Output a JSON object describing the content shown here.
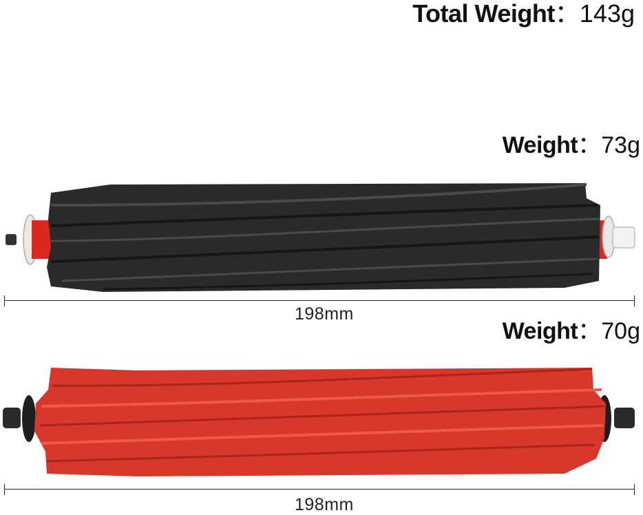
{
  "total": {
    "label": "Total Weight",
    "separator": "：",
    "value": "143g"
  },
  "black_roller": {
    "weight_label": "Weight",
    "separator": "：",
    "weight_value": "73g",
    "length": "198mm",
    "color": "#2b2b2b"
  },
  "red_roller": {
    "weight_label": "Weight",
    "separator": "：",
    "weight_value": "70g",
    "length": "198mm",
    "color": "#d8382c"
  }
}
